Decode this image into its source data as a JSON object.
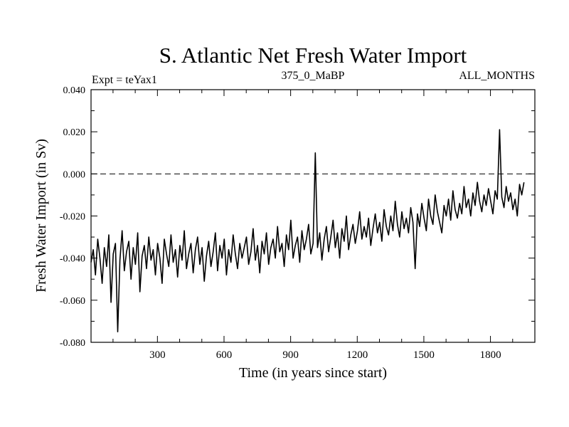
{
  "chart_data": {
    "type": "line",
    "title": "S. Atlantic Net Fresh Water Import",
    "subtitle_left": "Expt = teYax1",
    "subtitle_center": "375_0_MaBP",
    "subtitle_right": "ALL_MONTHS",
    "xlabel": "Time (in years since start)",
    "ylabel": "Fresh Water Import (in Sv)",
    "xlim": [
      1,
      2000
    ],
    "ylim": [
      -0.08,
      0.04
    ],
    "x_ticks": [
      300,
      600,
      900,
      1200,
      1500,
      1800
    ],
    "x_tick_labels": [
      "300",
      "600",
      "900",
      "1200",
      "1500",
      "1800"
    ],
    "y_ticks": [
      -0.08,
      -0.06,
      -0.04,
      -0.02,
      0.0,
      0.02,
      0.04
    ],
    "y_tick_labels": [
      "-0.080",
      "-0.060",
      "-0.040",
      "-0.020",
      "0.000",
      "0.020",
      "0.040"
    ],
    "reference_line": {
      "y": 0.0,
      "style": "dashed"
    },
    "series": [
      {
        "name": "Fresh Water Import",
        "x_start": 1,
        "x_step": 10,
        "values": [
          -0.042,
          -0.036,
          -0.048,
          -0.031,
          -0.04,
          -0.052,
          -0.035,
          -0.044,
          -0.029,
          -0.061,
          -0.038,
          -0.033,
          -0.075,
          -0.041,
          -0.027,
          -0.046,
          -0.037,
          -0.032,
          -0.05,
          -0.035,
          -0.043,
          -0.028,
          -0.056,
          -0.039,
          -0.034,
          -0.045,
          -0.03,
          -0.041,
          -0.036,
          -0.048,
          -0.033,
          -0.04,
          -0.052,
          -0.031,
          -0.038,
          -0.044,
          -0.029,
          -0.042,
          -0.036,
          -0.049,
          -0.034,
          -0.041,
          -0.027,
          -0.045,
          -0.038,
          -0.033,
          -0.047,
          -0.036,
          -0.03,
          -0.043,
          -0.035,
          -0.051,
          -0.039,
          -0.032,
          -0.044,
          -0.037,
          -0.028,
          -0.046,
          -0.034,
          -0.04,
          -0.031,
          -0.048,
          -0.036,
          -0.042,
          -0.029,
          -0.038,
          -0.045,
          -0.033,
          -0.04,
          -0.035,
          -0.03,
          -0.043,
          -0.037,
          -0.026,
          -0.041,
          -0.034,
          -0.047,
          -0.032,
          -0.038,
          -0.028,
          -0.043,
          -0.035,
          -0.031,
          -0.04,
          -0.025,
          -0.037,
          -0.033,
          -0.044,
          -0.029,
          -0.036,
          -0.022,
          -0.04,
          -0.034,
          -0.03,
          -0.042,
          -0.027,
          -0.036,
          -0.031,
          -0.024,
          -0.038,
          -0.033,
          0.01,
          -0.035,
          -0.028,
          -0.041,
          -0.031,
          -0.025,
          -0.037,
          -0.03,
          -0.022,
          -0.035,
          -0.028,
          -0.04,
          -0.026,
          -0.032,
          -0.02,
          -0.036,
          -0.029,
          -0.024,
          -0.033,
          -0.027,
          -0.018,
          -0.031,
          -0.025,
          -0.03,
          -0.021,
          -0.034,
          -0.026,
          -0.019,
          -0.028,
          -0.023,
          -0.032,
          -0.017,
          -0.025,
          -0.029,
          -0.02,
          -0.027,
          -0.013,
          -0.024,
          -0.03,
          -0.018,
          -0.026,
          -0.021,
          -0.028,
          -0.016,
          -0.023,
          -0.045,
          -0.019,
          -0.025,
          -0.014,
          -0.021,
          -0.027,
          -0.012,
          -0.02,
          -0.024,
          -0.01,
          -0.018,
          -0.023,
          -0.028,
          -0.015,
          -0.02,
          -0.012,
          -0.022,
          -0.008,
          -0.017,
          -0.021,
          -0.014,
          -0.019,
          -0.006,
          -0.016,
          -0.012,
          -0.02,
          -0.009,
          -0.015,
          -0.004,
          -0.013,
          -0.018,
          -0.01,
          -0.015,
          -0.007,
          -0.013,
          -0.019,
          -0.008,
          -0.012,
          0.021,
          -0.011,
          -0.016,
          -0.006,
          -0.013,
          -0.009,
          -0.017,
          -0.012,
          -0.02,
          -0.005,
          -0.01,
          -0.004
        ]
      }
    ]
  }
}
